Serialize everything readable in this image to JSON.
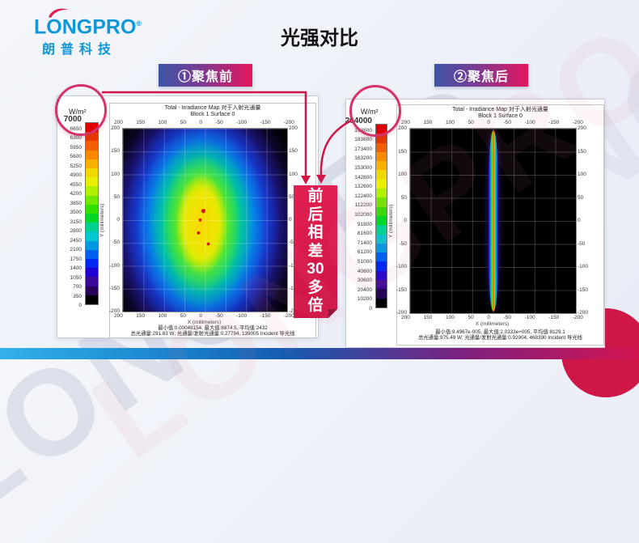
{
  "slide": {
    "title": "光强对比",
    "logo": {
      "brand": "LONGPRO",
      "registered": "®",
      "subtitle": "朗普科技"
    },
    "watermark_text": "LONGPRO",
    "ribbon_text": "前后相差30多倍",
    "ribbon_chars": [
      "前",
      "后",
      "相",
      "差",
      "30",
      "多",
      "倍"
    ]
  },
  "colors": {
    "brand_blue": "#0f97d7",
    "accent_crimson": "#cf1747",
    "header_gradient_left": "#3b55a6",
    "header_gradient_right": "#e5155c",
    "bottom_bar_left": "#33b1e8",
    "bottom_bar_right": "#d31450"
  },
  "colorbar_colors": [
    "#e00000",
    "#e83800",
    "#f06000",
    "#f88800",
    "#f8b000",
    "#f0d800",
    "#e8f000",
    "#b0f000",
    "#70e800",
    "#30e000",
    "#00d828",
    "#00d090",
    "#00c8d0",
    "#0098e0",
    "#0060f0",
    "#0028f0",
    "#2000d0",
    "#3c0898",
    "#280458",
    "#000000"
  ],
  "panels": [
    {
      "header": "①聚焦前",
      "unit": "W/m²",
      "plot_title_line1": "Total - Irradiance Map 对于入射光通量",
      "plot_title_line2": "Block 1 Surface 0",
      "colorbar_labels": [
        "7000",
        "6650",
        "6300",
        "5950",
        "5600",
        "5250",
        "4900",
        "4550",
        "4200",
        "3850",
        "3500",
        "3150",
        "2800",
        "2450",
        "2100",
        "1750",
        "1400",
        "1050",
        "700",
        "350",
        "0"
      ],
      "x_ticks": [
        "200",
        "150",
        "100",
        "50",
        "0",
        "-50",
        "-100",
        "-150",
        "-200"
      ],
      "y_ticks": [
        "200",
        "150",
        "100",
        "50",
        "0",
        "-50",
        "-100",
        "-150",
        "-200"
      ],
      "xlabel": "X (millimeters)",
      "ylabel": "Y (millimeters)",
      "stats_line1": "最小值:0.00049154, 最大值:6874.5, 平均值:2432",
      "stats_line2": "总光通量:291.83 W; 光通量/发射光通量:0.27794, 139005 Incident 导光线"
    },
    {
      "header": "②聚焦后",
      "unit": "W/m²",
      "plot_title_line1": "Total - Irradiance Map 对于入射光通量",
      "plot_title_line2": "Block 1 Surface 0",
      "colorbar_labels": [
        "204000",
        "193800",
        "183600",
        "173400",
        "163200",
        "153000",
        "142800",
        "132600",
        "122400",
        "112200",
        "102000",
        "91800",
        "81600",
        "71400",
        "61200",
        "51000",
        "40800",
        "30600",
        "20400",
        "10200",
        "0"
      ],
      "x_ticks": [
        "200",
        "150",
        "100",
        "50",
        "0",
        "-50",
        "-100",
        "-150",
        "-200"
      ],
      "y_ticks": [
        "200",
        "150",
        "100",
        "50",
        "0",
        "-50",
        "-100",
        "-150",
        "-200"
      ],
      "xlabel": "X (millimeters)",
      "ylabel": "Y (millimeters)",
      "stats_line1": "最小值:9.4967e-005, 最大值:2.0333e+005, 平均值:8129.1",
      "stats_line2": "总光通量:975.49 W; 光通量/发射光通量:0.92904, 468390 Incident 导光线"
    }
  ],
  "chart_data": [
    {
      "type": "heatmap",
      "title": "Total - Irradiance Map 对于入射光通量 / Block 1 Surface 0 (聚焦前)",
      "xlabel": "X (millimeters)",
      "ylabel": "Y (millimeters)",
      "x_ticks": [
        200,
        150,
        100,
        50,
        0,
        -50,
        -100,
        -150,
        -200
      ],
      "y_ticks": [
        200,
        150,
        100,
        50,
        0,
        -50,
        -100,
        -150,
        -200
      ],
      "colorbar_unit": "W/m²",
      "colorbar_range": [
        0,
        7000
      ],
      "colorbar_step": 350,
      "grid": true,
      "legend_position": "left-colorbar",
      "distribution": "broad noisy elliptical spot centered near (0,0), data spanning x 150 to -150, blue outer halo, green/yellow core with sparse red speckles up to ~6875 W/m²",
      "stats": {
        "min": 0.00049154,
        "max": 6874.5,
        "mean": 2432,
        "total_flux_W": 291.83,
        "flux_over_emitted_flux": 0.27794,
        "incident_rays": 139005
      }
    },
    {
      "type": "heatmap",
      "title": "Total - Irradiance Map 对于入射光通量 / Block 1 Surface 0 (聚焦后)",
      "xlabel": "X (millimeters)",
      "ylabel": "Y (millimeters)",
      "x_ticks": [
        200,
        150,
        100,
        50,
        0,
        -50,
        -100,
        -150,
        -200
      ],
      "y_ticks": [
        200,
        150,
        100,
        50,
        0,
        -50,
        -100,
        -150,
        -200
      ],
      "colorbar_unit": "W/m²",
      "colorbar_range": [
        0,
        204000
      ],
      "colorbar_step": 10200,
      "grid": true,
      "legend_position": "left-colorbar",
      "distribution": "narrow vertical focused line at x≈0 spanning full y range, red core ~204000 W/m² surrounded by yellow/green/cyan/blue/purple fringes",
      "stats": {
        "min": 9.4967e-05,
        "max": 203330,
        "mean": 8129.1,
        "total_flux_W": 975.49,
        "flux_over_emitted_flux": 0.92904,
        "incident_rays": 468390
      }
    }
  ]
}
